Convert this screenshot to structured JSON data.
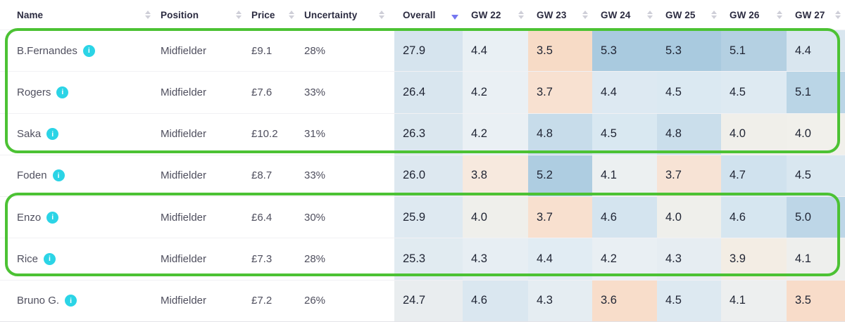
{
  "header": {
    "columns": [
      {
        "label": "Name",
        "sort": "inactive"
      },
      {
        "label": "Position",
        "sort": "inactive"
      },
      {
        "label": "Price",
        "sort": "inactive"
      },
      {
        "label": "Uncertainty",
        "sort": "inactive"
      },
      {
        "label": "Overall",
        "sort": "desc"
      },
      {
        "label": "GW 22",
        "sort": "inactive"
      },
      {
        "label": "GW 23",
        "sort": "inactive"
      },
      {
        "label": "GW 24",
        "sort": "inactive"
      },
      {
        "label": "GW 25",
        "sort": "inactive"
      },
      {
        "label": "GW 26",
        "sort": "inactive"
      },
      {
        "label": "GW 27",
        "sort": "inactive"
      }
    ]
  },
  "rows": [
    {
      "name": "B.Fernandes",
      "position": "Midfielder",
      "price": "£9.1",
      "uncertainty": "28%",
      "scores": [
        {
          "value": "27.9",
          "bg": "#d6e4ee"
        },
        {
          "value": "4.4",
          "bg": "#e9f0f4"
        },
        {
          "value": "3.5",
          "bg": "#f7dbc6"
        },
        {
          "value": "5.3",
          "bg": "#a9cadf"
        },
        {
          "value": "5.3",
          "bg": "#a9cadf"
        },
        {
          "value": "5.1",
          "bg": "#b4d0e2"
        },
        {
          "value": "4.4",
          "bg": "#d9e6ef"
        }
      ]
    },
    {
      "name": "Rogers",
      "position": "Midfielder",
      "price": "£7.6",
      "uncertainty": "33%",
      "scores": [
        {
          "value": "26.4",
          "bg": "#d9e6ef"
        },
        {
          "value": "4.2",
          "bg": "#eaf0f4"
        },
        {
          "value": "3.7",
          "bg": "#f8e1d1"
        },
        {
          "value": "4.4",
          "bg": "#dde9f2"
        },
        {
          "value": "4.5",
          "bg": "#dbe9f2"
        },
        {
          "value": "4.5",
          "bg": "#deeaf2"
        },
        {
          "value": "5.1",
          "bg": "#bad5e6"
        }
      ]
    },
    {
      "name": "Saka",
      "position": "Midfielder",
      "price": "£10.2",
      "uncertainty": "31%",
      "scores": [
        {
          "value": "26.3",
          "bg": "#dbe7ef"
        },
        {
          "value": "4.2",
          "bg": "#eaf0f4"
        },
        {
          "value": "4.8",
          "bg": "#c7dcea"
        },
        {
          "value": "4.5",
          "bg": "#d9e8f1"
        },
        {
          "value": "4.8",
          "bg": "#cadeeb"
        },
        {
          "value": "4.0",
          "bg": "#f0efea"
        },
        {
          "value": "4.0",
          "bg": "#f1f0eb"
        }
      ]
    },
    {
      "name": "Foden",
      "position": "Midfielder",
      "price": "£8.7",
      "uncertainty": "33%",
      "scores": [
        {
          "value": "26.0",
          "bg": "#dde8f0"
        },
        {
          "value": "3.8",
          "bg": "#f7e9de"
        },
        {
          "value": "5.2",
          "bg": "#aecde1"
        },
        {
          "value": "4.1",
          "bg": "#ecf0f1"
        },
        {
          "value": "3.7",
          "bg": "#f7e3d5"
        },
        {
          "value": "4.7",
          "bg": "#d0e2ee"
        },
        {
          "value": "4.5",
          "bg": "#d9e7f0"
        }
      ]
    },
    {
      "name": "Enzo",
      "position": "Midfielder",
      "price": "£6.4",
      "uncertainty": "30%",
      "scores": [
        {
          "value": "25.9",
          "bg": "#dee9f1"
        },
        {
          "value": "4.0",
          "bg": "#efefeb"
        },
        {
          "value": "3.7",
          "bg": "#f8e0cf"
        },
        {
          "value": "4.6",
          "bg": "#d4e4ef"
        },
        {
          "value": "4.0",
          "bg": "#efefeb"
        },
        {
          "value": "4.6",
          "bg": "#d6e6f0"
        },
        {
          "value": "5.0",
          "bg": "#bdd6e7"
        }
      ]
    },
    {
      "name": "Rice",
      "position": "Midfielder",
      "price": "£7.3",
      "uncertainty": "28%",
      "scores": [
        {
          "value": "25.3",
          "bg": "#e1ebf1"
        },
        {
          "value": "4.3",
          "bg": "#e7eef3"
        },
        {
          "value": "4.4",
          "bg": "#e1ecf3"
        },
        {
          "value": "4.2",
          "bg": "#e9eff3"
        },
        {
          "value": "4.3",
          "bg": "#e6edf2"
        },
        {
          "value": "3.9",
          "bg": "#f3ede4"
        },
        {
          "value": "4.1",
          "bg": "#eeefed"
        }
      ]
    },
    {
      "name": "Bruno G.",
      "position": "Midfielder",
      "price": "£7.2",
      "uncertainty": "26%",
      "scores": [
        {
          "value": "24.7",
          "bg": "#e9edef"
        },
        {
          "value": "4.6",
          "bg": "#dae7f0"
        },
        {
          "value": "4.3",
          "bg": "#e5edf2"
        },
        {
          "value": "3.6",
          "bg": "#f8ddca"
        },
        {
          "value": "4.5",
          "bg": "#dde9f1"
        },
        {
          "value": "4.1",
          "bg": "#edefef"
        },
        {
          "value": "3.5",
          "bg": "#f8dcc9"
        }
      ]
    }
  ],
  "icons": {
    "info_label": "i",
    "info_bg": "#2bd4e6",
    "sort_inactive_color": "#cfcfd8",
    "sort_active_color": "#7577f0"
  },
  "annotations": {
    "highlight_color": "#4cc234",
    "boxes": [
      {
        "covers": "rows 1-3 (B.Fernandes, Rogers, Saka)"
      },
      {
        "covers": "rows 5-6 (Enzo, Rice)"
      }
    ]
  }
}
